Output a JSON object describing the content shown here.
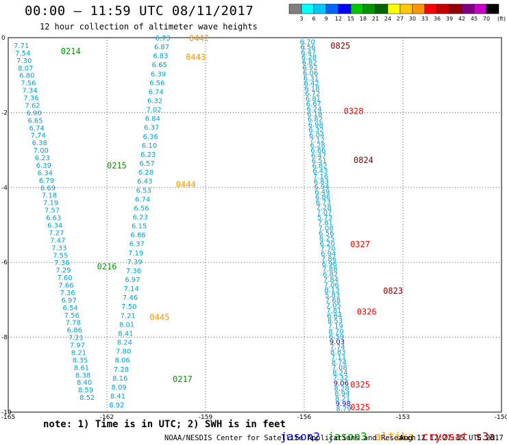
{
  "header": {
    "title": "00:00 – 11:59 UTC 08/11/2017",
    "subtitle": "12 hour collection of altimeter wave heights"
  },
  "colorbar": {
    "unit": "(ft)",
    "ticks": [
      "3",
      "6",
      "9",
      "12",
      "15",
      "18",
      "21",
      "24",
      "27",
      "30",
      "33",
      "36",
      "39",
      "42",
      "45",
      "70"
    ],
    "colors": [
      "#808080",
      "#00ffff",
      "#00c8ff",
      "#0064ff",
      "#0000ff",
      "#00c800",
      "#009600",
      "#006400",
      "#ffff00",
      "#ffc800",
      "#ff9600",
      "#ff0000",
      "#c80000",
      "#960000",
      "#800080",
      "#c800c8",
      "#000000"
    ]
  },
  "footer": {
    "note": "note: 1) Time is in UTC; 2) SWH is in feet",
    "satellites": [
      {
        "name": "jason2",
        "color": "#0000ff"
      },
      {
        "name": "jason3",
        "color": "#009600"
      },
      {
        "name": "altika",
        "color": "#ff9600"
      },
      {
        "name": "cryosat",
        "color": "#ff0000"
      },
      {
        "name": "s3a",
        "color": "#800000"
      }
    ],
    "credit": "NOAA/NESDIS Center for Satellite Applications and Research",
    "timestamp": "Aug 12 12:27:15 UTC 2017"
  },
  "chart_data": {
    "type": "scatter",
    "xlim": [
      -165,
      -150
    ],
    "ylim": [
      -10,
      0
    ],
    "x_ticks": [
      "-165",
      "-162",
      "-159",
      "-156",
      "-153",
      "-150"
    ],
    "y_ticks": [
      "0",
      "-2",
      "-4",
      "-6",
      "-8",
      "-10"
    ],
    "grid": true,
    "point_color": "#00a0d0",
    "tracks": [
      {
        "values": [
          "7.71",
          "7.54",
          "7.30",
          "8.07",
          "6.80",
          "7.56",
          "7.34",
          "7.36",
          "7.62",
          "6.90",
          "6.65",
          "6.74",
          "7.74",
          "6.38",
          "7.00",
          "6.23",
          "6.39",
          "6.34",
          "6.79",
          "6.69",
          "7.18",
          "7.19",
          "7.57",
          "6.63",
          "6.34",
          "7.27",
          "7.47",
          "7.33",
          "7.55",
          "7.36",
          "7.29",
          "7.60",
          "7.66",
          "7.36",
          "6.97",
          "6.54",
          "7.56",
          "7.78",
          "6.86",
          "7.21",
          "7.97",
          "8.21",
          "8.35",
          "8.61",
          "8.38",
          "8.40",
          "8.59",
          "8.52"
        ],
        "lon_start": -164.6,
        "lat_start": -0.2,
        "lon_end": -162.6,
        "lat_end": -9.6
      },
      {
        "values": [
          "6.73",
          "6.87",
          "6.83",
          "6.65",
          "6.39",
          "6.56",
          "6.74",
          "6.32",
          "7.02",
          "6.84",
          "6.37",
          "6.36",
          "6.10",
          "6.23",
          "6.57",
          "6.28",
          "6.43",
          "6.53",
          "6.74",
          "6.56",
          "6.23",
          "6.15",
          "6.86",
          "6.37",
          "7.19",
          "7.39",
          "7.36",
          "6.97",
          "7.14",
          "7.46",
          "7.50",
          "7.21",
          "8.01",
          "8.41",
          "8.24",
          "7.80",
          "8.06",
          "7.28",
          "8.16",
          "8.09",
          "8.41",
          "8.92"
        ],
        "lon_start": -160.3,
        "lat_start": 0.0,
        "lon_end": -161.7,
        "lat_end": -9.8
      },
      {
        "values": [
          "6.70",
          "6.56",
          "6.47",
          "6.28",
          "6.82",
          "6.92",
          "6.06",
          "6.31",
          "6.42",
          "6.18",
          "6.72",
          "6.81",
          "6.67",
          "6.24",
          "6.18",
          "6.82",
          "6.98",
          "6.32",
          "6.04",
          "7.12",
          "6.28",
          "6.66",
          "6.47",
          "6.51",
          "6.82",
          "6.43",
          "7.16",
          "6.83",
          "6.94",
          "6.49",
          "6.86",
          "6.73",
          "7.28",
          "7.07",
          "5.73",
          "7.81",
          "7.08",
          "6.56",
          "8.25",
          "6.20",
          "7.70",
          "6.94",
          "7.86",
          "6.96",
          "7.88",
          "6.82",
          "7.84",
          "7.06",
          "8.13",
          "5.83",
          "7.68",
          "7.05",
          "7.81",
          "6.64",
          "8.53",
          "7.19",
          "8.70",
          "6.59",
          "9.03",
          "7.74",
          "8.83",
          "7.11",
          "8.74",
          "7.08",
          "8.24",
          "7.32",
          "9.06",
          "8.28",
          "8.94",
          "8.21",
          "9.98",
          "8.79"
        ],
        "lon_start": -155.9,
        "lat_start": -0.1,
        "lon_end": -154.8,
        "lat_end": -9.9
      }
    ],
    "pass_labels": [
      {
        "text": "0214",
        "lon": -163.4,
        "lat": -0.35,
        "color": "#009600"
      },
      {
        "text": "0442",
        "lon": -159.5,
        "lat": 0.0,
        "color": "#ff9600"
      },
      {
        "text": "0443",
        "lon": -159.6,
        "lat": -0.5,
        "color": "#ff9600"
      },
      {
        "text": "0825",
        "lon": -155.2,
        "lat": -0.2,
        "color": "#800000"
      },
      {
        "text": "0328",
        "lon": -154.8,
        "lat": -1.95,
        "color": "#ff0000"
      },
      {
        "text": "0215",
        "lon": -162.0,
        "lat": -3.4,
        "color": "#009600"
      },
      {
        "text": "0824",
        "lon": -154.5,
        "lat": -3.25,
        "color": "#800000"
      },
      {
        "text": "0444",
        "lon": -159.9,
        "lat": -3.9,
        "color": "#ff9600"
      },
      {
        "text": "0327",
        "lon": -154.6,
        "lat": -5.5,
        "color": "#ff0000"
      },
      {
        "text": "0216",
        "lon": -162.3,
        "lat": -6.1,
        "color": "#009600"
      },
      {
        "text": "0823",
        "lon": -153.6,
        "lat": -6.75,
        "color": "#800000"
      },
      {
        "text": "0326",
        "lon": -154.4,
        "lat": -7.3,
        "color": "#ff0000"
      },
      {
        "text": "0445",
        "lon": -160.7,
        "lat": -7.45,
        "color": "#ff9600"
      },
      {
        "text": "0217",
        "lon": -160.0,
        "lat": -9.1,
        "color": "#009600"
      },
      {
        "text": "0325",
        "lon": -154.6,
        "lat": -9.25,
        "color": "#ff0000"
      },
      {
        "text": "0325",
        "lon": -154.6,
        "lat": -9.85,
        "color": "#ff0000"
      }
    ]
  }
}
